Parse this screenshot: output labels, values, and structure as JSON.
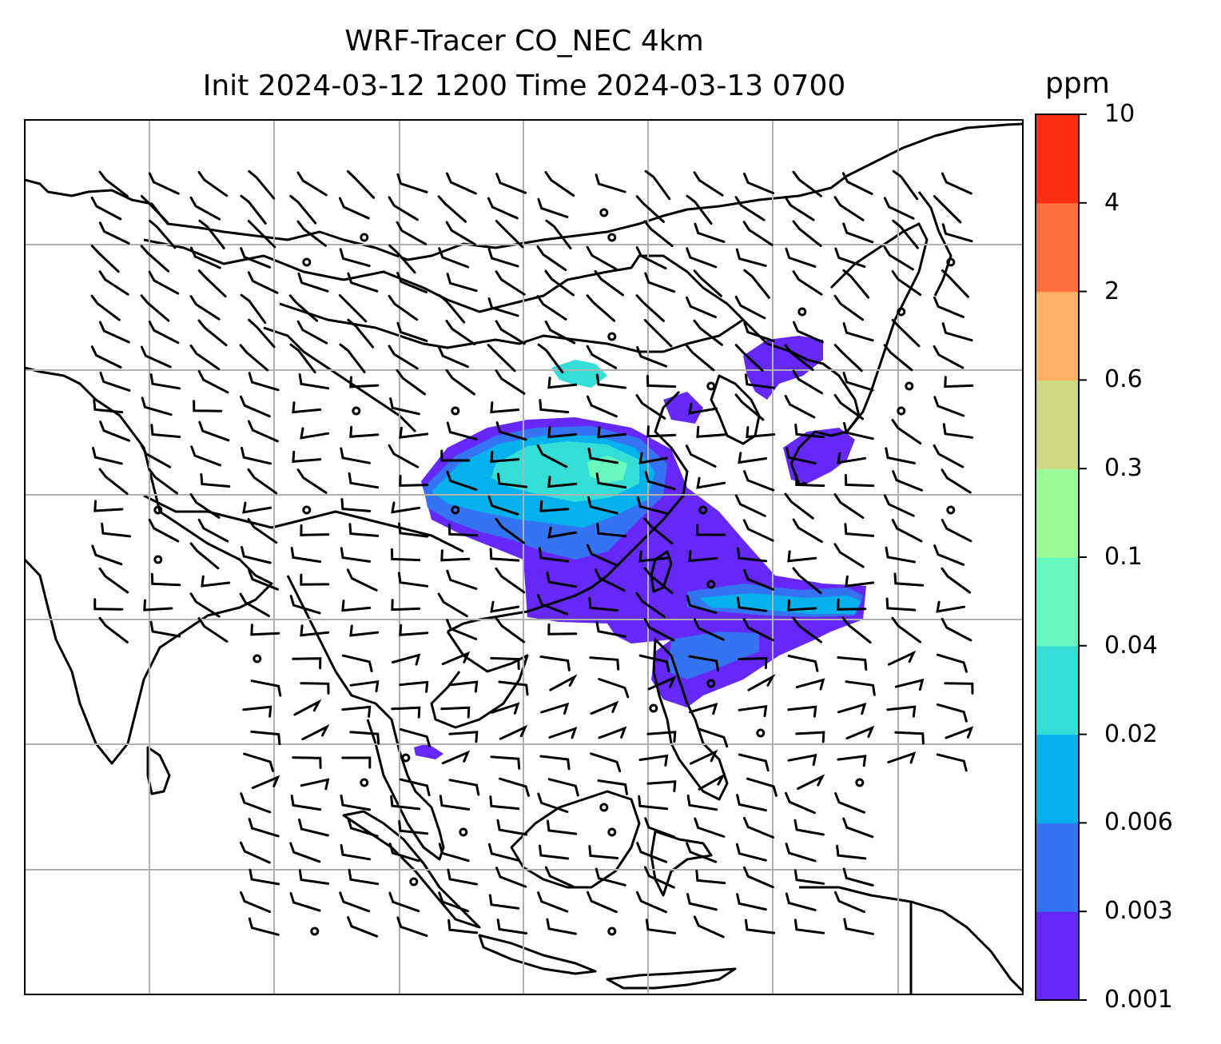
{
  "figure": {
    "title_line1": "WRF-Tracer CO_NEC 4km",
    "title_line2": "Init 2024-03-12 1200 Time 2024-03-13 0700"
  },
  "colorbar": {
    "unit": "ppm",
    "levels": [
      "0.001",
      "0.003",
      "0.006",
      "0.02",
      "0.04",
      "0.1",
      "0.3",
      "0.6",
      "2",
      "4",
      "10"
    ],
    "colors": [
      "#6528f7",
      "#3473f2",
      "#04b1ec",
      "#34ddd5",
      "#68fabd",
      "#99fa98",
      "#ced981",
      "#ffb062",
      "#ff6e3d",
      "#ff2d14"
    ]
  },
  "map": {
    "background": "#ffffff",
    "gridline_color": "#b0b0b0",
    "coastline_color": "#000000",
    "wind_barb_color": "#000000",
    "gridlines": true,
    "tracer_field": "CO_NEC"
  }
}
